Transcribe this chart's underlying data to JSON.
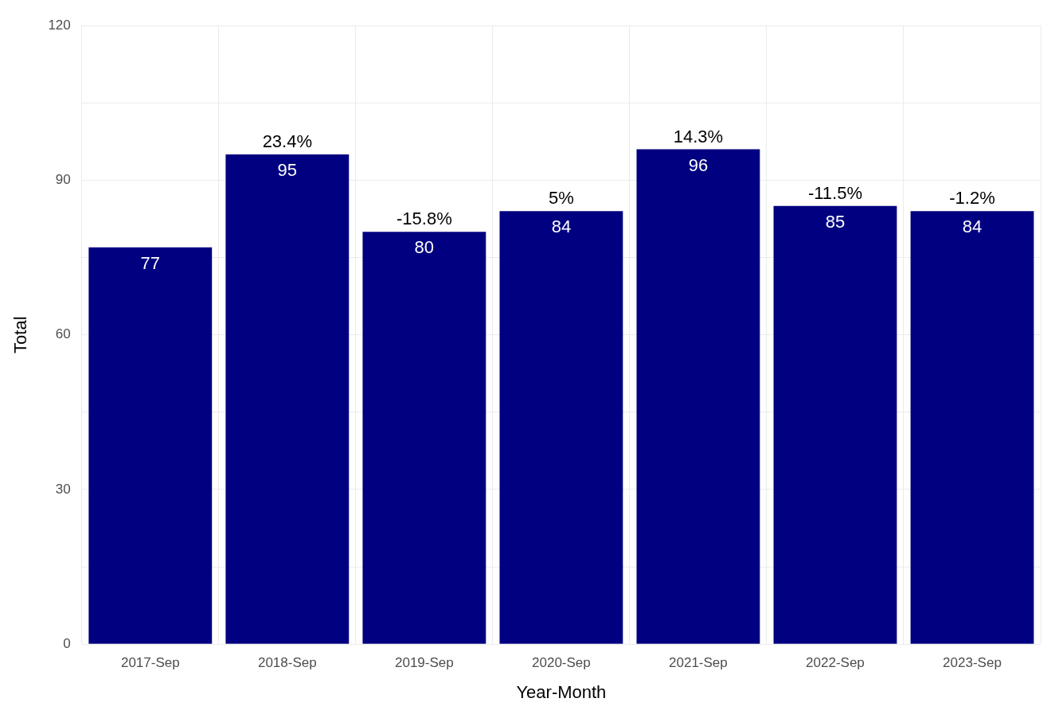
{
  "chart_data": {
    "type": "bar",
    "xlabel": "Year-Month",
    "ylabel": "Total",
    "categories": [
      "2017-Sep",
      "2018-Sep",
      "2019-Sep",
      "2020-Sep",
      "2021-Sep",
      "2022-Sep",
      "2023-Sep"
    ],
    "values": [
      77,
      95,
      80,
      84,
      96,
      85,
      84
    ],
    "color": "#000080",
    "ylim": [
      0,
      120
    ],
    "yticks": [
      0,
      {
        "value": 15,
        "label": null
      },
      30,
      {
        "value": 45,
        "label": null
      },
      60,
      {
        "value": 75,
        "label": null
      },
      90,
      {
        "value": 105,
        "label": null
      },
      120
    ],
    "grid": true,
    "data_labels": true,
    "legend": false,
    "annotations": [
      {
        "text": "23.4%",
        "x": "2018-Sep",
        "y": 95
      },
      {
        "text": "-15.8%",
        "x": "2019-Sep",
        "y": 80
      },
      {
        "text": "5%",
        "x": "2020-Sep",
        "y": 84
      },
      {
        "text": "14.3%",
        "x": "2021-Sep",
        "y": 96
      },
      {
        "text": "-11.5%",
        "x": "2022-Sep",
        "y": 85
      },
      {
        "text": "-1.2%",
        "x": "2023-Sep",
        "y": 84
      }
    ]
  }
}
